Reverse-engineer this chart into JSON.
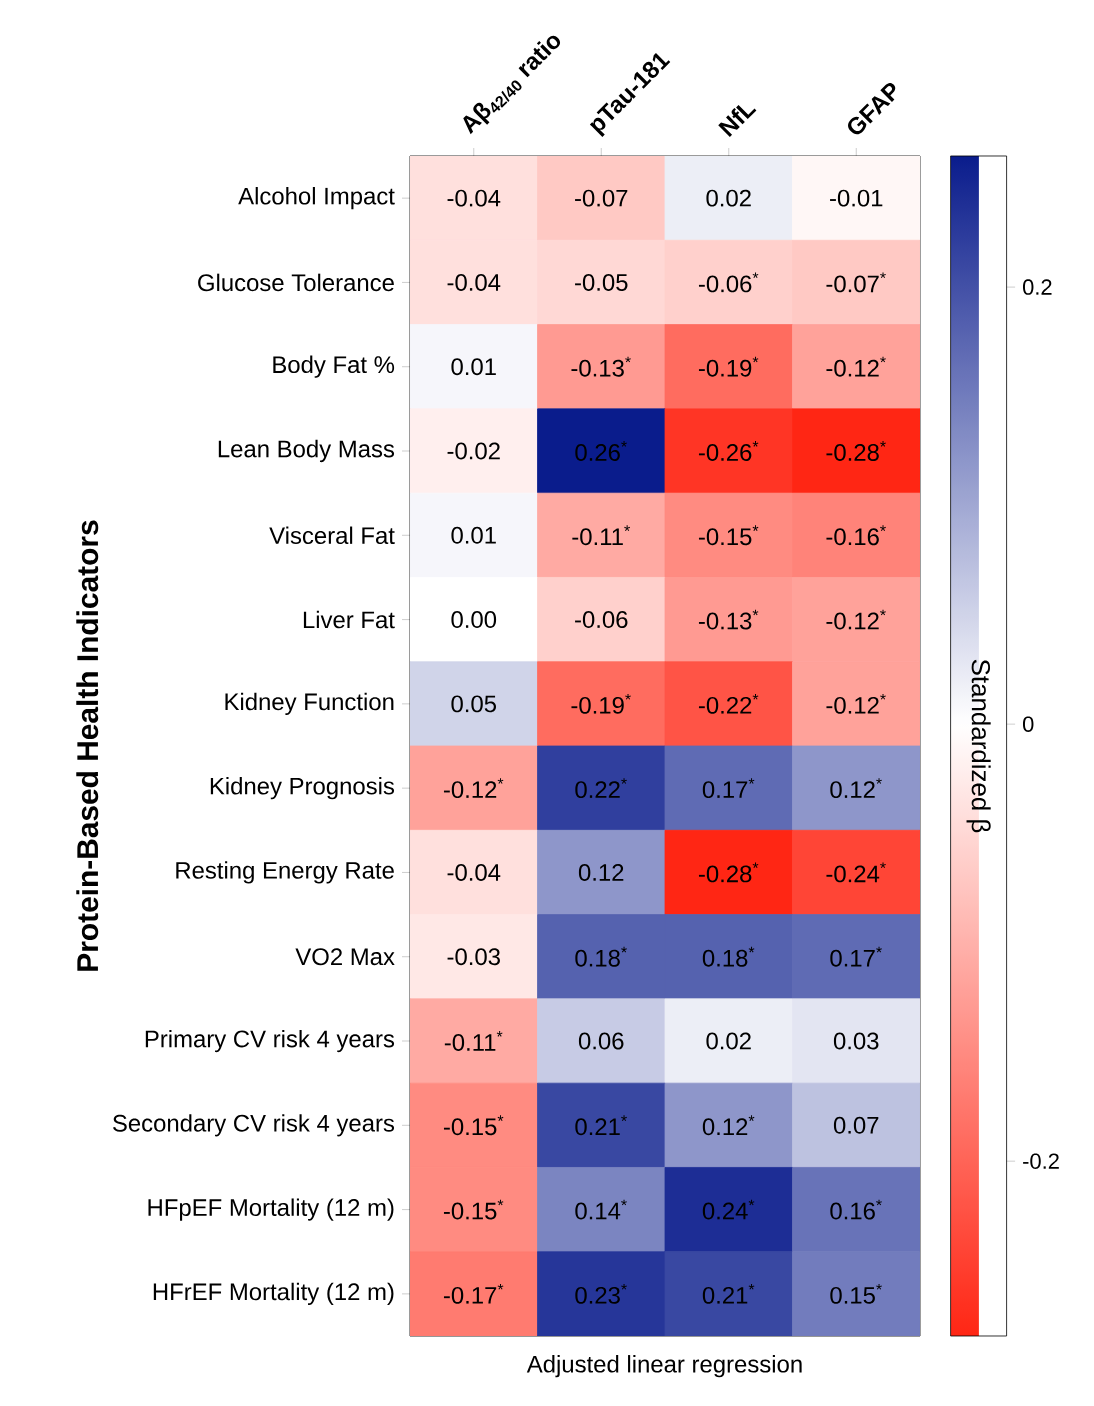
{
  "chart_data": {
    "type": "heatmap",
    "ylabel": "Protein-Based Health Indicators",
    "xlabel": "Adjusted linear regression",
    "clabel": "Standardized β",
    "categories": [
      "Aβ$_{42/40}$ ratio",
      "pTau-181",
      "NfL",
      "GFAP"
    ],
    "y_categories": [
      "Alcohol Impact",
      "Glucose Tolerance",
      "Body Fat %",
      "Lean Body Mass",
      "Visceral Fat",
      "Liver Fat",
      "Kidney Function",
      "Kidney Prognosis",
      "Resting Energy Rate",
      "VO2 Max",
      "Primary CV risk 4 years",
      "Secondary CV risk 4 years",
      "HFpEF Mortality (12 m)",
      "HFrEF Mortality (12 m)"
    ],
    "cells": [
      [
        -0.04,
        -0.07,
        0.02,
        -0.01
      ],
      [
        -0.04,
        -0.05,
        -0.06,
        -0.07
      ],
      [
        0.01,
        -0.13,
        -0.19,
        -0.12
      ],
      [
        -0.02,
        0.26,
        -0.26,
        -0.28
      ],
      [
        0.01,
        -0.11,
        -0.15,
        -0.16
      ],
      [
        0.0,
        -0.06,
        -0.13,
        -0.12
      ],
      [
        0.05,
        -0.19,
        -0.22,
        -0.12
      ],
      [
        -0.12,
        0.22,
        0.17,
        0.12
      ],
      [
        -0.04,
        0.12,
        -0.28,
        -0.24
      ],
      [
        -0.03,
        0.18,
        0.18,
        0.17
      ],
      [
        -0.11,
        0.06,
        0.02,
        0.03
      ],
      [
        -0.15,
        0.21,
        0.12,
        0.07
      ],
      [
        -0.15,
        0.14,
        0.24,
        0.16
      ],
      [
        -0.17,
        0.23,
        0.21,
        0.15
      ]
    ],
    "cell_labels": [
      [
        "-0.04",
        "-0.07",
        "0.02",
        "-0.01"
      ],
      [
        "-0.04",
        "-0.05",
        "-0.06$^{*}$",
        "-0.07$^{*}$"
      ],
      [
        "0.01",
        "-0.13$^{*}$",
        "-0.19$^{*}$",
        "-0.12$^{*}$"
      ],
      [
        "-0.02",
        "0.26$^{*}$",
        "-0.26$^{*}$",
        "-0.28$^{*}$"
      ],
      [
        "0.01",
        "-0.11$^{*}$",
        "-0.15$^{*}$",
        "-0.16$^{*}$"
      ],
      [
        "0.00",
        "-0.06",
        "-0.13$^{*}$",
        "-0.12$^{*}$"
      ],
      [
        "0.05",
        "-0.19$^{*}$",
        "-0.22$^{*}$",
        "-0.12$^{*}$"
      ],
      [
        "-0.12$^{*}$",
        "0.22$^{*}$",
        "0.17$^{*}$",
        "0.12$^{*}$"
      ],
      [
        "-0.04",
        "0.12",
        "-0.28$^{*}$",
        "-0.24$^{*}$"
      ],
      [
        "-0.03",
        "0.18$^{*}$",
        "0.18$^{*}$",
        "0.17$^{*}$"
      ],
      [
        "-0.11$^{*}$",
        "0.06",
        "0.02",
        "0.03"
      ],
      [
        "-0.15$^{*}$",
        "0.21$^{*}$",
        "0.12$^{*}$",
        "0.07"
      ],
      [
        "-0.15$^{*}$",
        "0.14$^{*}$",
        "0.24$^{*}$",
        "0.16$^{*}$"
      ],
      [
        "-0.17$^{*}$",
        "0.23$^{*}$",
        "0.21$^{*}$",
        "0.15$^{*}$"
      ]
    ],
    "clim": [
      -0.28,
      0.26
    ],
    "cticks": [
      -0.2,
      0,
      0.2
    ]
  }
}
